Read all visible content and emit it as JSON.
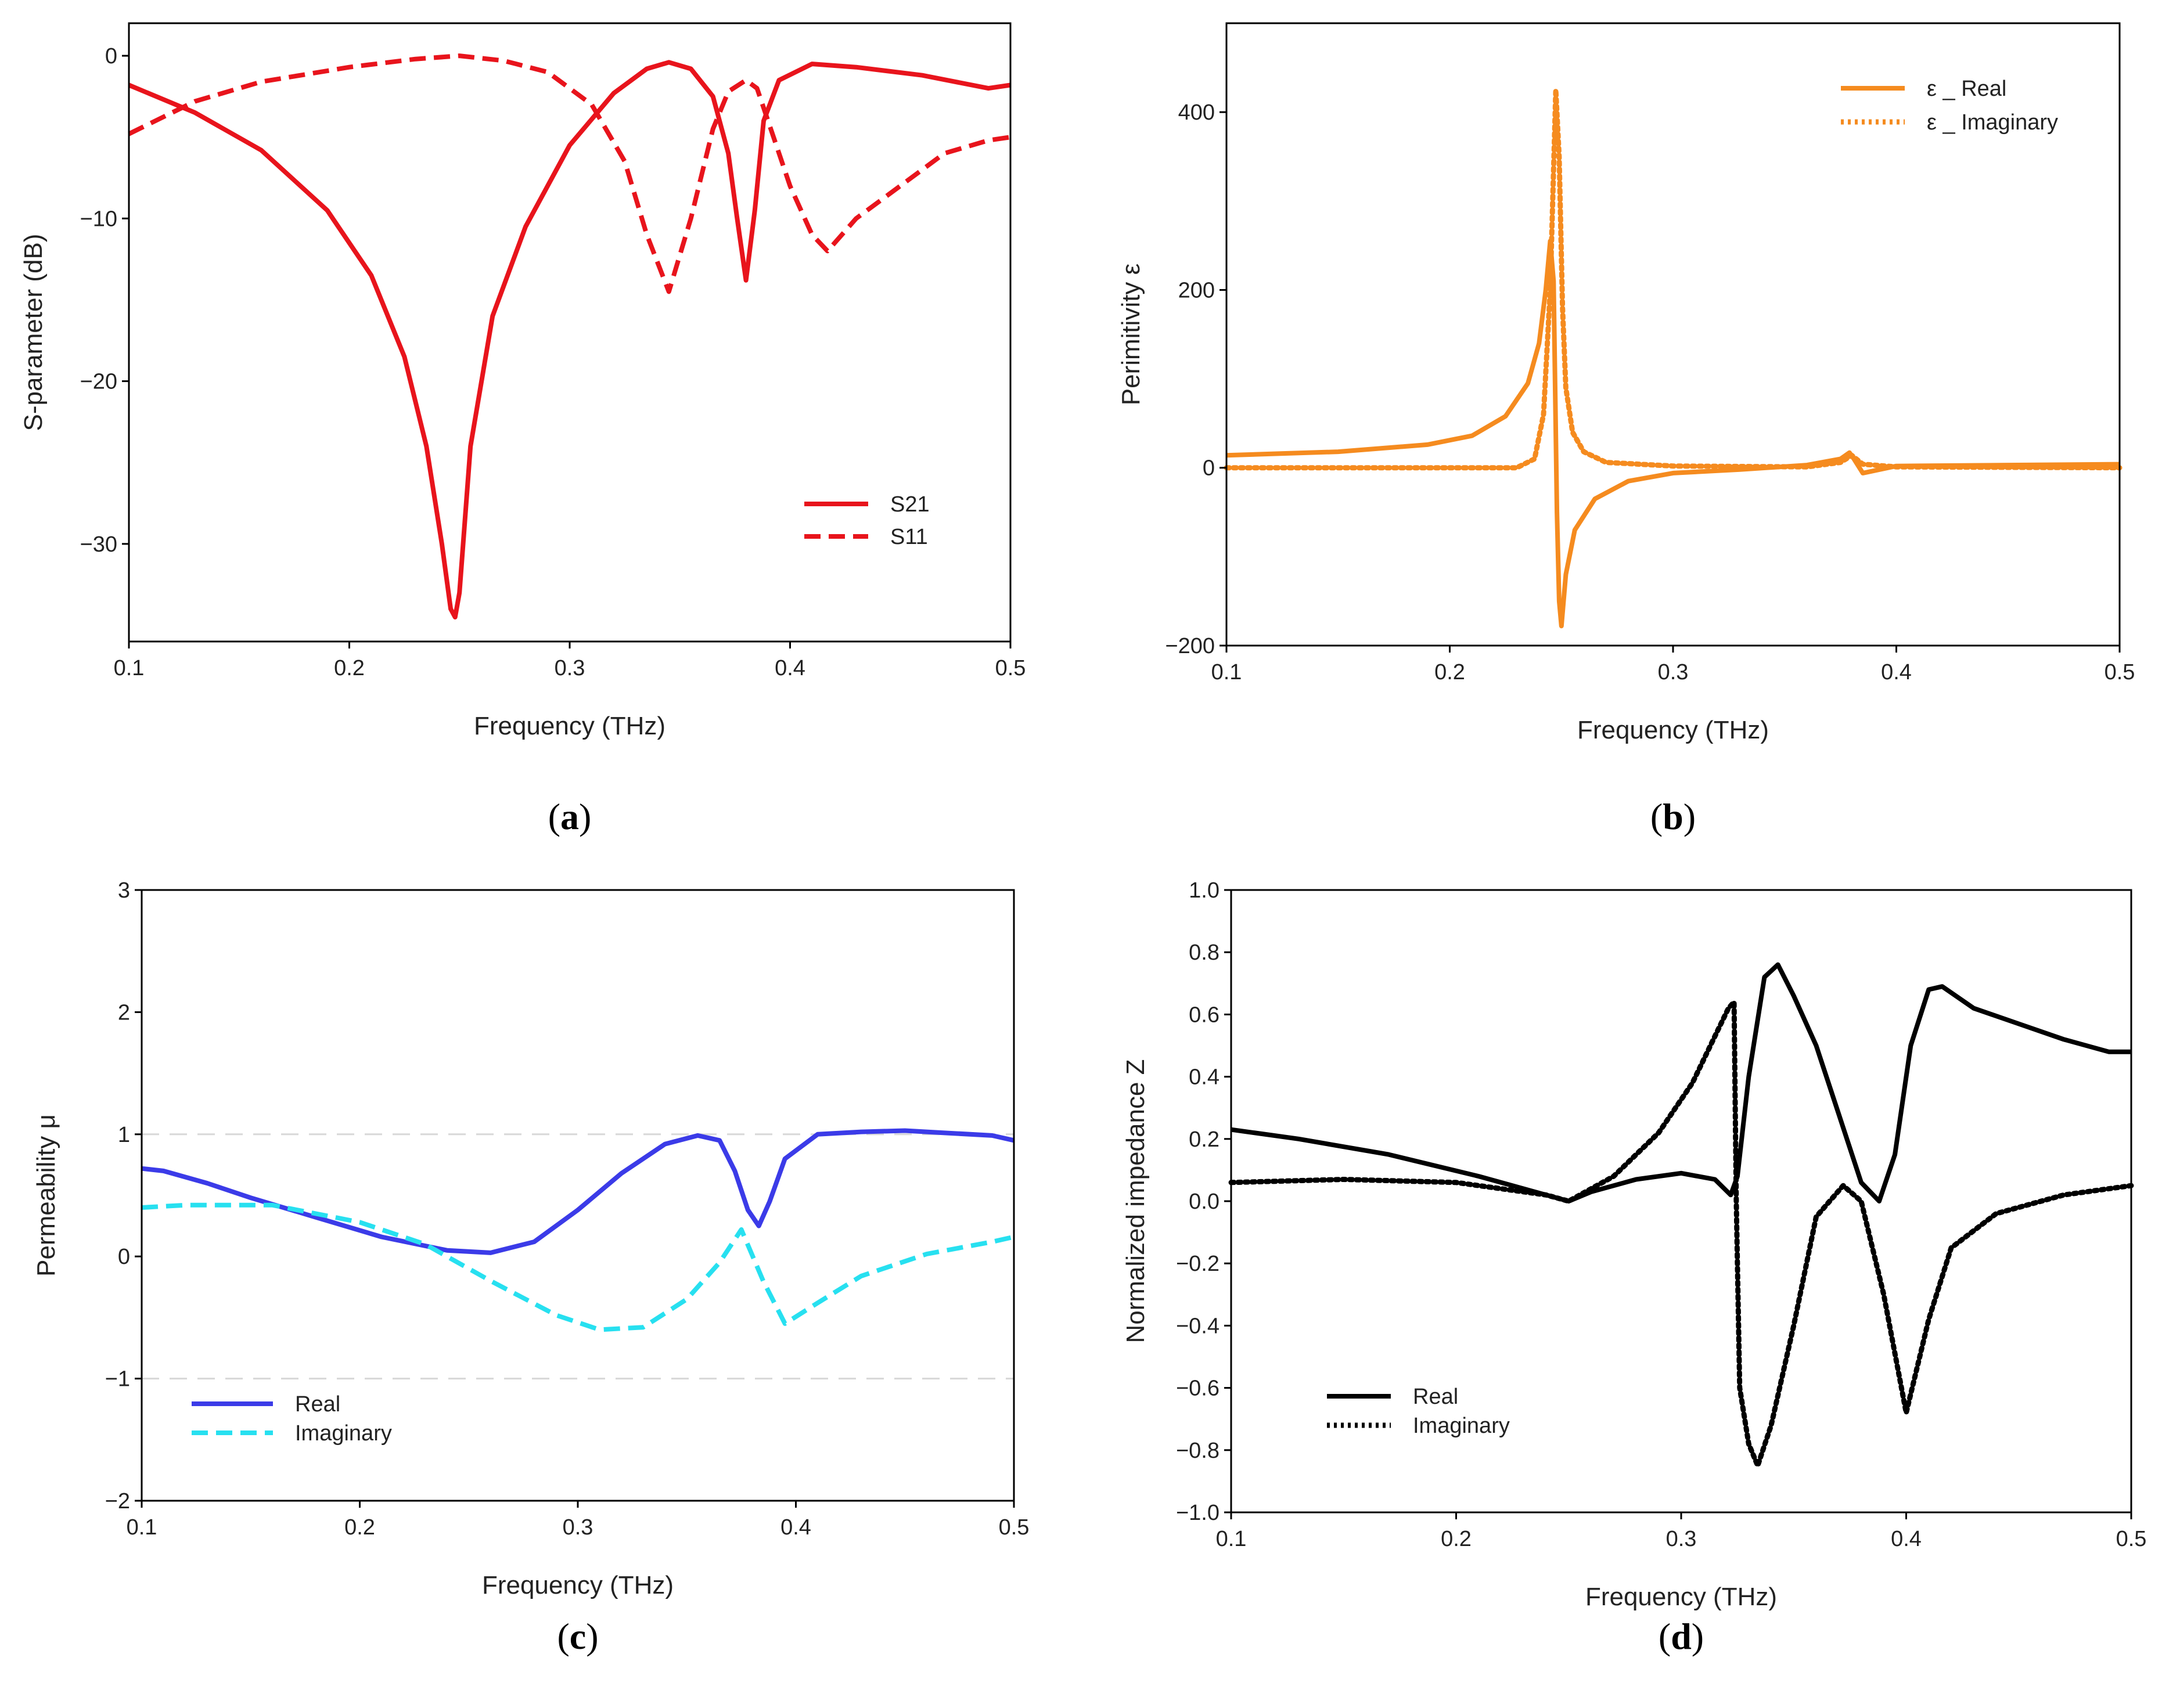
{
  "chart_data": [
    {
      "type": "line",
      "panel": "a",
      "caption_letter": "a",
      "title": "",
      "xlabel": "Frequency (THz)",
      "ylabel": "S-parameter (dB)",
      "xlim": [
        0.1,
        0.5
      ],
      "ylim": [
        -36,
        2
      ],
      "xticks": [
        0.1,
        0.2,
        0.3,
        0.4,
        0.5
      ],
      "xtick_labels": [
        "0.1",
        "0.2",
        "0.3",
        "0.4",
        "0.5"
      ],
      "yticks": [
        0,
        -10,
        -20,
        -30
      ],
      "ytick_labels": [
        "0",
        "−10",
        "−20",
        "−30"
      ],
      "legend_position": "bottom-right",
      "series": [
        {
          "name": "S21",
          "color": "#e8141c",
          "style": "solid",
          "x": [
            0.1,
            0.13,
            0.16,
            0.19,
            0.21,
            0.225,
            0.235,
            0.242,
            0.246,
            0.248,
            0.25,
            0.255,
            0.265,
            0.28,
            0.3,
            0.32,
            0.335,
            0.345,
            0.355,
            0.365,
            0.372,
            0.376,
            0.38,
            0.384,
            0.388,
            0.395,
            0.41,
            0.43,
            0.46,
            0.49,
            0.5
          ],
          "y": [
            -1.8,
            -3.5,
            -5.8,
            -9.5,
            -13.5,
            -18.5,
            -24,
            -30,
            -34,
            -34.5,
            -33,
            -24,
            -16,
            -10.5,
            -5.5,
            -2.3,
            -0.8,
            -0.4,
            -0.8,
            -2.5,
            -6,
            -10,
            -13.8,
            -9.5,
            -4,
            -1.5,
            -0.5,
            -0.7,
            -1.2,
            -2,
            -1.8
          ]
        },
        {
          "name": "S11",
          "color": "#e8141c",
          "style": "dashed",
          "x": [
            0.1,
            0.13,
            0.16,
            0.2,
            0.23,
            0.25,
            0.27,
            0.29,
            0.31,
            0.325,
            0.335,
            0.345,
            0.355,
            0.365,
            0.372,
            0.38,
            0.385,
            0.39,
            0.4,
            0.41,
            0.417,
            0.43,
            0.45,
            0.47,
            0.49,
            0.5
          ],
          "y": [
            -4.8,
            -2.8,
            -1.6,
            -0.7,
            -0.2,
            0,
            -0.3,
            -1,
            -3,
            -6.5,
            -11,
            -14.5,
            -10,
            -4.5,
            -2.2,
            -1.5,
            -2,
            -4,
            -8,
            -11,
            -12,
            -10,
            -8,
            -6,
            -5.2,
            -5
          ]
        }
      ]
    },
    {
      "type": "line",
      "panel": "b",
      "caption_letter": "b",
      "title": "",
      "xlabel": "Frequency (THz)",
      "ylabel": "Perimitivity ε",
      "xlim": [
        0.1,
        0.5
      ],
      "ylim": [
        -200,
        500
      ],
      "xticks": [
        0.1,
        0.2,
        0.3,
        0.4,
        0.5
      ],
      "xtick_labels": [
        "0.1",
        "0.2",
        "0.3",
        "0.4",
        "0.5"
      ],
      "yticks": [
        400,
        200,
        0,
        -200
      ],
      "ytick_labels": [
        "400",
        "200",
        "0",
        "−200"
      ],
      "legend_position": "top-right",
      "series": [
        {
          "name": "ε _ Real",
          "color": "#f58b1f",
          "style": "solid",
          "x": [
            0.1,
            0.15,
            0.19,
            0.21,
            0.225,
            0.235,
            0.24,
            0.243,
            0.245,
            0.2465,
            0.248,
            0.249,
            0.25,
            0.252,
            0.256,
            0.265,
            0.28,
            0.3,
            0.33,
            0.36,
            0.375,
            0.379,
            0.381,
            0.385,
            0.4,
            0.45,
            0.5
          ],
          "y": [
            14,
            18,
            26,
            36,
            58,
            95,
            140,
            200,
            255,
            210,
            -50,
            -150,
            -178,
            -120,
            -70,
            -35,
            -15,
            -6,
            -2,
            3,
            10,
            17,
            10,
            -6,
            2,
            3,
            4
          ]
        },
        {
          "name": "ε _ Imaginary",
          "color": "#f58b1f",
          "style": "dotted",
          "x": [
            0.1,
            0.2,
            0.23,
            0.238,
            0.242,
            0.245,
            0.2475,
            0.249,
            0.2505,
            0.252,
            0.255,
            0.26,
            0.27,
            0.3,
            0.36,
            0.375,
            0.38,
            0.385,
            0.4,
            0.5
          ],
          "y": [
            0,
            0,
            0,
            10,
            60,
            200,
            425,
            350,
            180,
            90,
            40,
            18,
            6,
            2,
            1,
            6,
            14,
            4,
            1,
            0
          ]
        }
      ]
    },
    {
      "type": "line",
      "panel": "c",
      "caption_letter": "c",
      "title": "",
      "xlabel": "Frequency (THz)",
      "ylabel": "Permeability μ",
      "xlim": [
        0.1,
        0.5
      ],
      "ylim": [
        -2,
        3
      ],
      "xticks": [
        0.1,
        0.2,
        0.3,
        0.4,
        0.5
      ],
      "xtick_labels": [
        "0.1",
        "0.2",
        "0.3",
        "0.4",
        "0.5"
      ],
      "yticks": [
        3,
        2,
        1,
        0,
        -1,
        -2
      ],
      "ytick_labels": [
        "3",
        "2",
        "1",
        "0",
        "−1",
        "−2"
      ],
      "gridlines_y": [
        1,
        -1
      ],
      "legend_position": "bottom-left",
      "series": [
        {
          "name": "Real",
          "color": "#3b3be8",
          "style": "solid",
          "x": [
            0.1,
            0.11,
            0.13,
            0.15,
            0.18,
            0.21,
            0.24,
            0.26,
            0.28,
            0.3,
            0.32,
            0.34,
            0.355,
            0.365,
            0.372,
            0.378,
            0.383,
            0.388,
            0.395,
            0.41,
            0.43,
            0.45,
            0.47,
            0.49,
            0.5
          ],
          "y": [
            0.72,
            0.7,
            0.6,
            0.48,
            0.32,
            0.16,
            0.05,
            0.03,
            0.12,
            0.38,
            0.68,
            0.92,
            0.99,
            0.95,
            0.7,
            0.38,
            0.25,
            0.45,
            0.8,
            1.0,
            1.02,
            1.03,
            1.01,
            0.99,
            0.95
          ]
        },
        {
          "name": "Imaginary",
          "color": "#27e0f0",
          "style": "dashed",
          "x": [
            0.1,
            0.12,
            0.16,
            0.2,
            0.23,
            0.26,
            0.29,
            0.31,
            0.33,
            0.35,
            0.365,
            0.375,
            0.385,
            0.395,
            0.41,
            0.43,
            0.46,
            0.49,
            0.5
          ],
          "y": [
            0.4,
            0.42,
            0.42,
            0.28,
            0.1,
            -0.2,
            -0.48,
            -0.6,
            -0.58,
            -0.35,
            -0.05,
            0.22,
            -0.2,
            -0.55,
            -0.38,
            -0.16,
            0.02,
            0.12,
            0.16
          ]
        }
      ]
    },
    {
      "type": "line",
      "panel": "d",
      "caption_letter": "d",
      "title": "",
      "xlabel": "Frequency (THz)",
      "ylabel": "Normalized impedance Z",
      "xlim": [
        0.1,
        0.5
      ],
      "ylim": [
        -1.0,
        1.0
      ],
      "xticks": [
        0.1,
        0.2,
        0.3,
        0.4,
        0.5
      ],
      "xtick_labels": [
        "0.1",
        "0.2",
        "0.3",
        "0.4",
        "0.5"
      ],
      "yticks": [
        1.0,
        0.8,
        0.6,
        0.4,
        0.2,
        0.0,
        -0.2,
        -0.4,
        -0.6,
        -0.8,
        -1.0
      ],
      "ytick_labels": [
        "1.0",
        "0.8",
        "0.6",
        "0.4",
        "0.2",
        "0.0",
        "−0.2",
        "−0.4",
        "−0.6",
        "−0.8",
        "−1.0"
      ],
      "legend_position": "bottom-left",
      "series": [
        {
          "name": "Real",
          "color": "#000000",
          "style": "solid",
          "x": [
            0.1,
            0.13,
            0.17,
            0.21,
            0.24,
            0.25,
            0.26,
            0.28,
            0.3,
            0.315,
            0.322,
            0.325,
            0.33,
            0.337,
            0.343,
            0.35,
            0.36,
            0.37,
            0.38,
            0.388,
            0.395,
            0.402,
            0.41,
            0.416,
            0.43,
            0.45,
            0.47,
            0.49,
            0.5
          ],
          "y": [
            0.23,
            0.2,
            0.15,
            0.08,
            0.02,
            0.0,
            0.03,
            0.07,
            0.09,
            0.07,
            0.02,
            0.08,
            0.4,
            0.72,
            0.76,
            0.66,
            0.5,
            0.28,
            0.06,
            0.0,
            0.15,
            0.5,
            0.68,
            0.69,
            0.62,
            0.57,
            0.52,
            0.48,
            0.48
          ]
        },
        {
          "name": "Imaginary",
          "color": "#000000",
          "style": "dotted",
          "x": [
            0.1,
            0.15,
            0.2,
            0.24,
            0.25,
            0.27,
            0.29,
            0.305,
            0.315,
            0.321,
            0.3235,
            0.3245,
            0.326,
            0.33,
            0.334,
            0.34,
            0.35,
            0.36,
            0.372,
            0.38,
            0.39,
            0.4,
            0.41,
            0.42,
            0.44,
            0.47,
            0.5
          ],
          "y": [
            0.06,
            0.07,
            0.06,
            0.02,
            0.0,
            0.08,
            0.22,
            0.38,
            0.53,
            0.62,
            0.64,
            0.0,
            -0.6,
            -0.78,
            -0.85,
            -0.72,
            -0.4,
            -0.05,
            0.05,
            0.0,
            -0.3,
            -0.68,
            -0.38,
            -0.15,
            -0.04,
            0.02,
            0.05
          ]
        }
      ]
    }
  ]
}
